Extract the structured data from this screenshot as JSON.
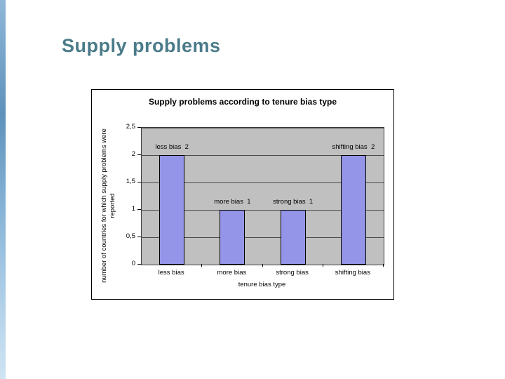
{
  "slide": {
    "title": "Supply problems"
  },
  "chart": {
    "title": "Supply problems according to tenure bias type",
    "x_axis_title": "tenure bias type",
    "y_axis_title": "number of countries for which supply problems were reported"
  },
  "chart_data": {
    "type": "bar",
    "title": "Supply problems according to tenure bias type",
    "xlabel": "tenure bias type",
    "ylabel": "number of countries for which supply problems were reported",
    "categories": [
      "less bias",
      "more bias",
      "strong bias",
      "shifting bias"
    ],
    "values": [
      2,
      1,
      1,
      2
    ],
    "data_labels": [
      "less bias  2",
      "more bias  1",
      "strong bias  1",
      "shifting bias  2"
    ],
    "y_tick_labels": [
      "2,5",
      "2",
      "1,5",
      "1",
      "0,5",
      "0"
    ],
    "y_tick_values": [
      2.5,
      2,
      1.5,
      1,
      0.5,
      0
    ],
    "ylim": [
      0,
      2.5
    ],
    "grid": true,
    "legend": "none",
    "colors": {
      "bar_fill": "#9494e8",
      "bar_border": "#000000",
      "plot_background": "#c0c0c0",
      "slide_title": "#4b7b89"
    }
  }
}
